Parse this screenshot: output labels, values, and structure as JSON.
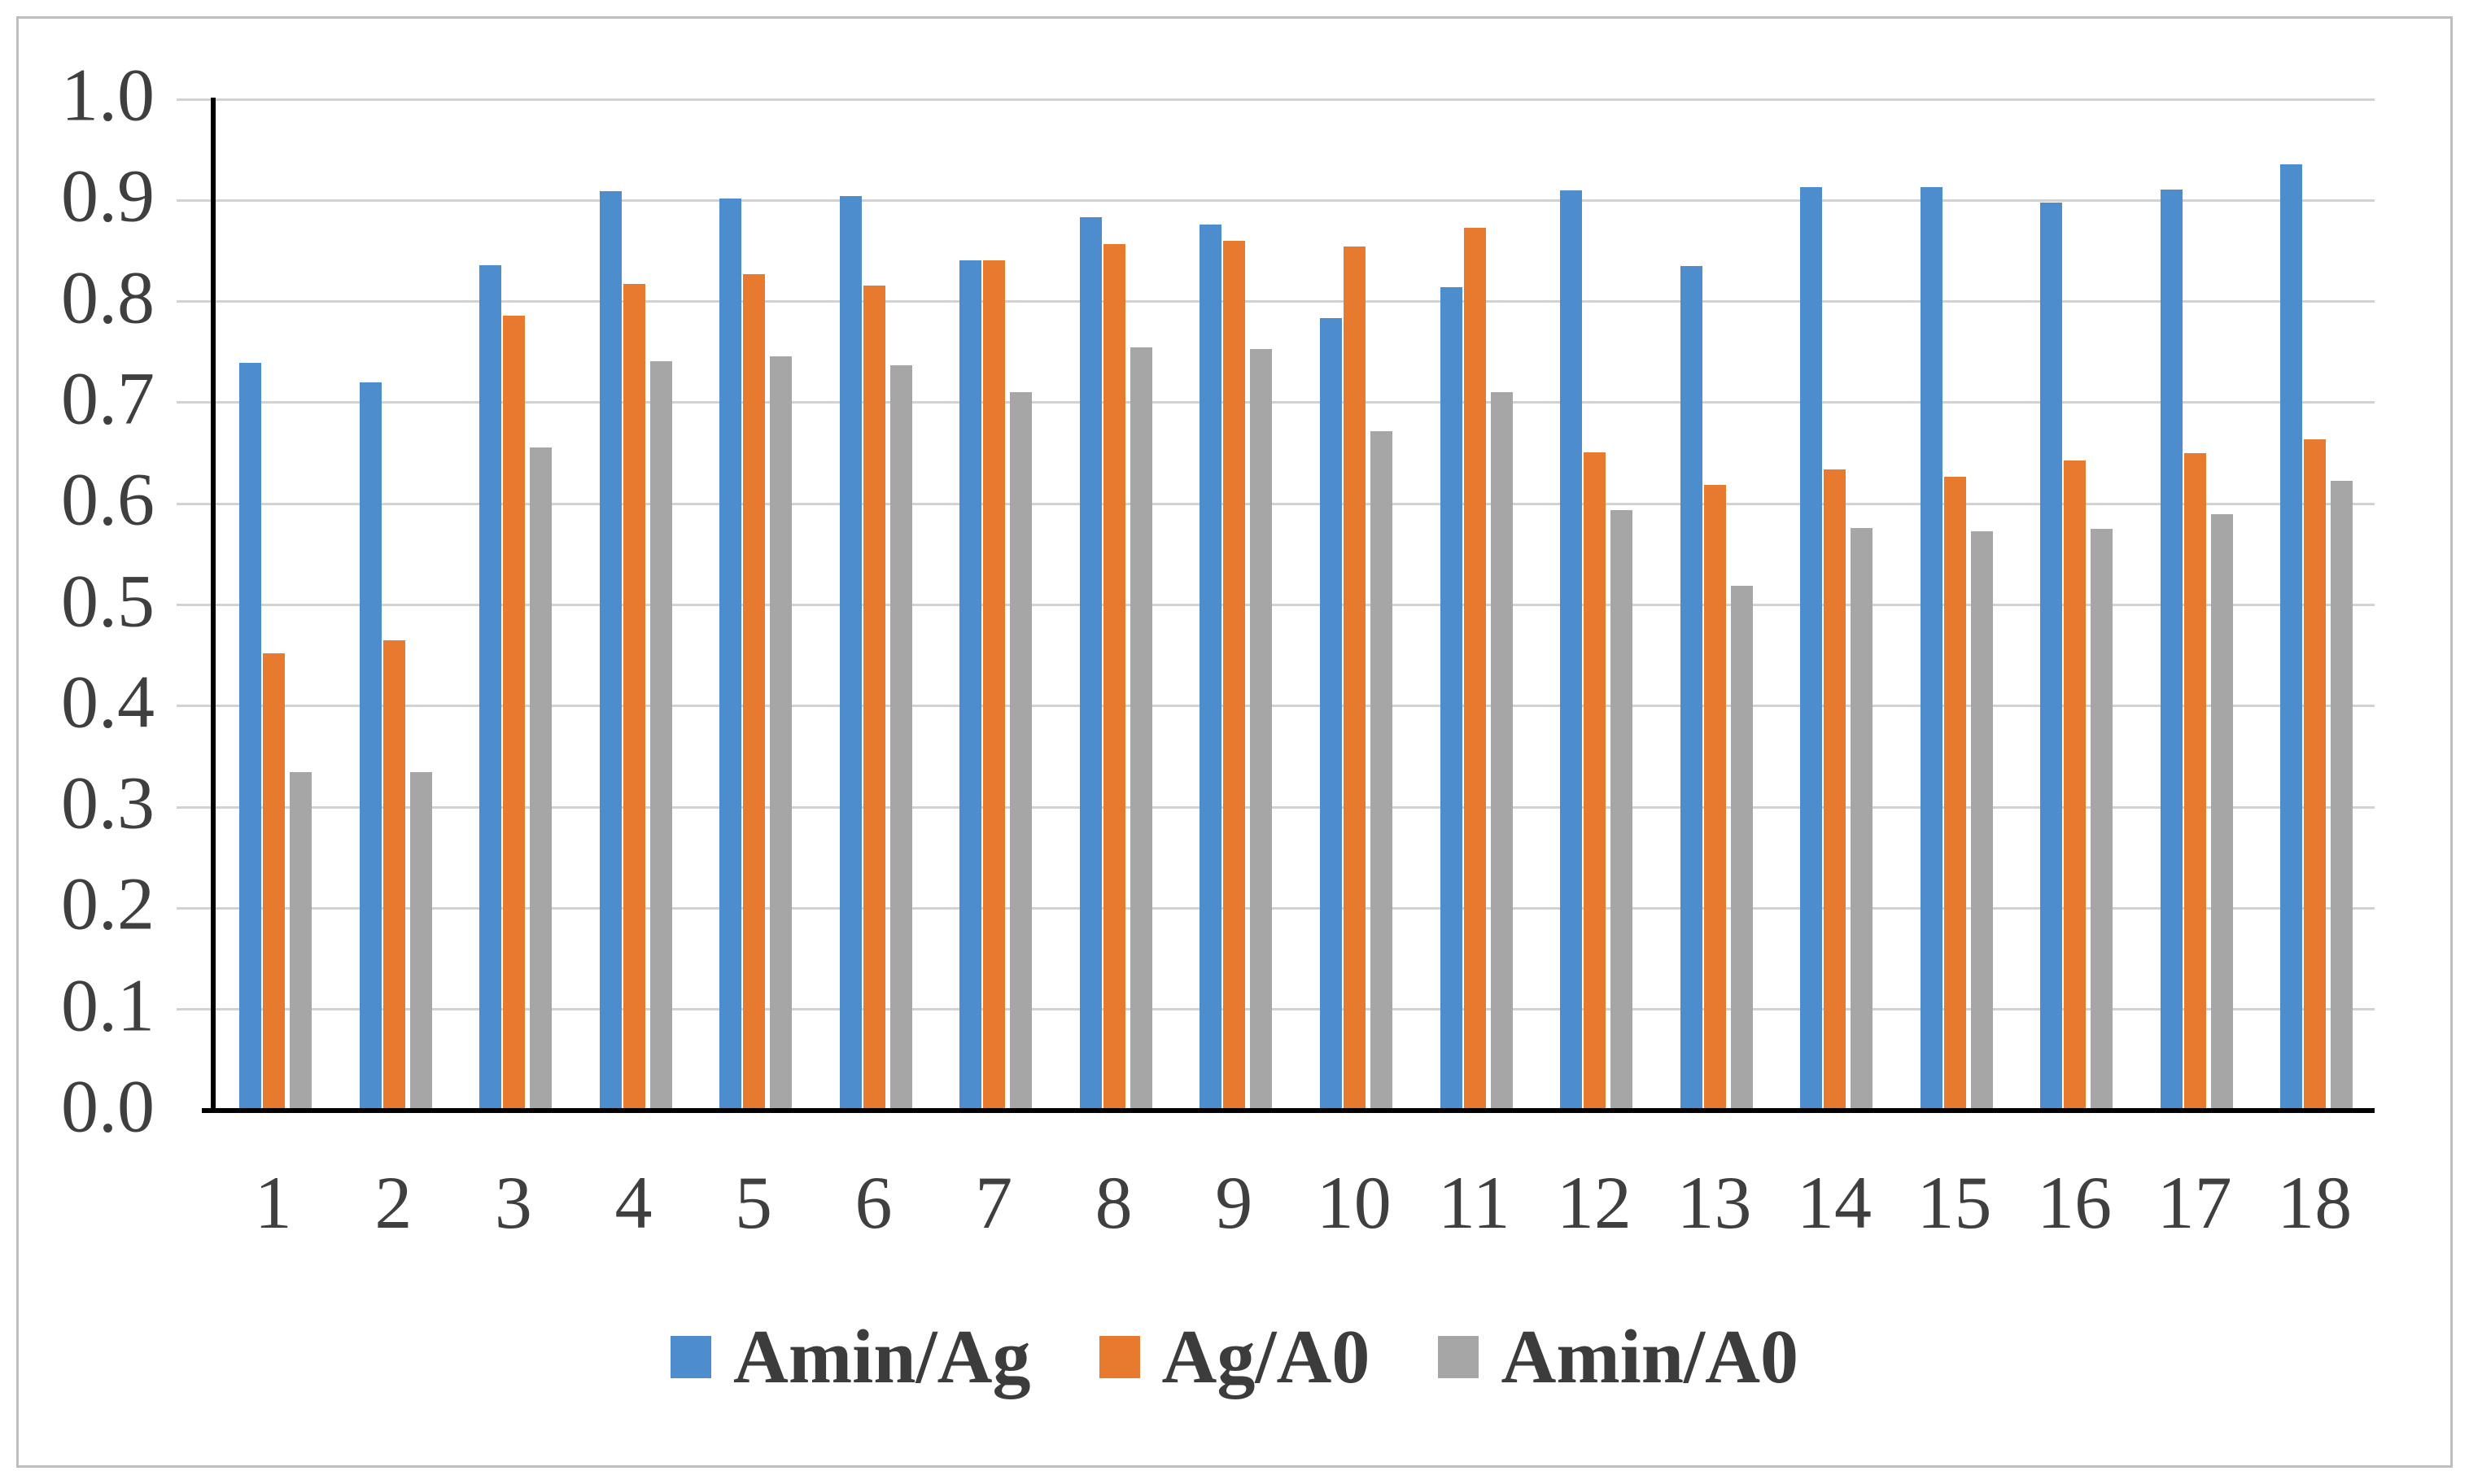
{
  "chart_data": {
    "type": "bar",
    "title": "",
    "xlabel": "",
    "ylabel": "",
    "categories": [
      "1",
      "2",
      "3",
      "4",
      "5",
      "6",
      "7",
      "8",
      "9",
      "10",
      "11",
      "12",
      "13",
      "14",
      "15",
      "16",
      "17",
      "18"
    ],
    "series": [
      {
        "name": "Amin/Ag",
        "color": "#4D8DCD",
        "values": [
          0.739,
          0.72,
          0.836,
          0.909,
          0.902,
          0.904,
          0.841,
          0.883,
          0.876,
          0.784,
          0.814,
          0.91,
          0.835,
          0.913,
          0.913,
          0.898,
          0.911,
          0.936
        ]
      },
      {
        "name": "Ag/A0",
        "color": "#E87A30",
        "values": [
          0.452,
          0.465,
          0.786,
          0.817,
          0.827,
          0.816,
          0.841,
          0.857,
          0.86,
          0.854,
          0.873,
          0.651,
          0.619,
          0.634,
          0.627,
          0.643,
          0.65,
          0.664
        ]
      },
      {
        "name": "Amin/A0",
        "color": "#A6A6A6",
        "values": [
          0.335,
          0.335,
          0.656,
          0.741,
          0.746,
          0.737,
          0.71,
          0.755,
          0.753,
          0.672,
          0.71,
          0.594,
          0.519,
          0.576,
          0.573,
          0.575,
          0.59,
          0.623
        ]
      }
    ],
    "ylim": [
      0.0,
      1.0
    ],
    "y_tick_labels": [
      "1.0",
      "0.9",
      "0.8",
      "0.7",
      "0.6",
      "0.5",
      "0.4",
      "0.3",
      "0.2",
      "0.1",
      "0.0"
    ],
    "grid": true,
    "legend_position": "bottom",
    "axis_color": "#000000",
    "gridline_color": "#d2d2d2",
    "text_color": "#3f3f3f"
  }
}
